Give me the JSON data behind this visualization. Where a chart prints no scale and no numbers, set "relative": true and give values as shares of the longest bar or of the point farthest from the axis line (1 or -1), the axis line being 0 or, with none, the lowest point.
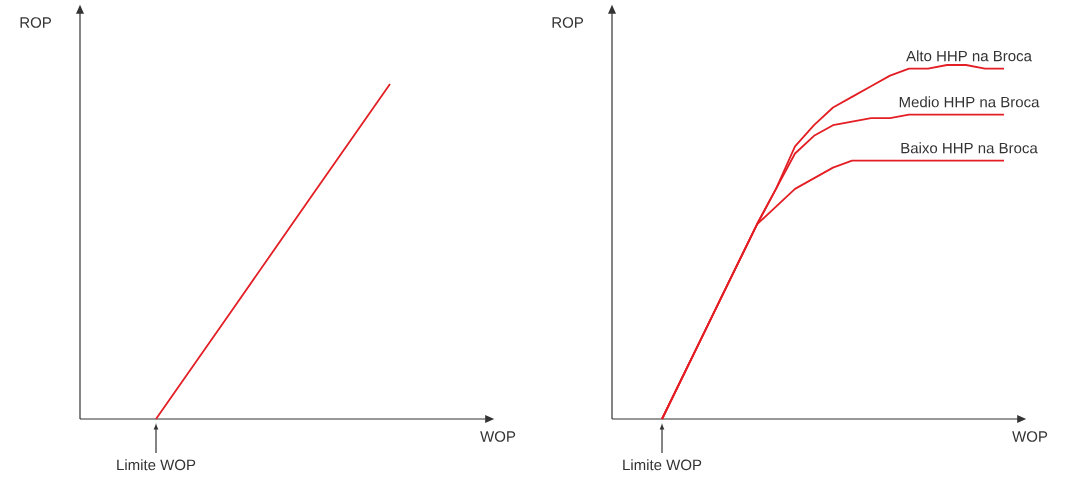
{
  "chart_data": [
    {
      "type": "line",
      "relative": true,
      "xlabel": "WOP",
      "ylabel": "ROP",
      "annotations": [
        "Limite WOP"
      ],
      "categories": [
        null,
        null,
        null,
        null,
        null,
        null
      ],
      "series": [
        {
          "color": "#e31e24",
          "values": [
            null,
            0,
            0.333,
            0.667,
            1,
            null
          ]
        }
      ]
    },
    {
      "type": "line",
      "relative": true,
      "xlabel": "WOP",
      "ylabel": "ROP",
      "annotations": [
        "Limite WOP"
      ],
      "categories": [
        null,
        null,
        null,
        null,
        null,
        null,
        null,
        null,
        null,
        null,
        null,
        null,
        null,
        null,
        null,
        null,
        null,
        null,
        null,
        null
      ],
      "series": [
        {
          "name": "Alto HHP na Broca",
          "color": "#e31e24",
          "values": [
            null,
            0,
            0.11,
            0.22,
            0.33,
            0.44,
            0.55,
            0.65,
            0.77,
            0.83,
            0.88,
            0.91,
            0.94,
            0.97,
            0.99,
            0.99,
            1,
            1,
            0.99,
            0.99
          ]
        },
        {
          "name": "Medio HHP na Broca",
          "color": "#e31e24",
          "values": [
            null,
            0,
            0.11,
            0.22,
            0.33,
            0.44,
            0.55,
            0.65,
            0.75,
            0.8,
            0.83,
            0.84,
            0.85,
            0.85,
            0.86,
            0.86,
            0.86,
            0.86,
            0.86,
            0.86
          ]
        },
        {
          "name": "Baixo HHP na Broca",
          "color": "#e31e24",
          "values": [
            null,
            0,
            0.11,
            0.22,
            0.33,
            0.44,
            0.55,
            0.6,
            0.65,
            0.68,
            0.71,
            0.73,
            0.73,
            0.73,
            0.73,
            0.73,
            0.73,
            0.73,
            0.73,
            0.73
          ]
        }
      ]
    }
  ]
}
